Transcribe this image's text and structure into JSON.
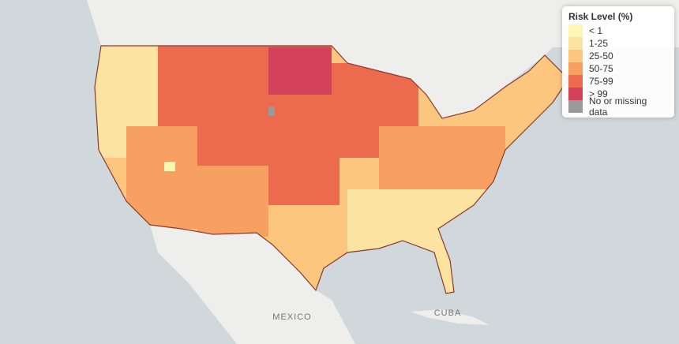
{
  "legend": {
    "title": "Risk Level (%)",
    "items": [
      {
        "label": "< 1",
        "color": "#fef6b5"
      },
      {
        "label": "1-25",
        "color": "#fde3a1"
      },
      {
        "label": "25-50",
        "color": "#fdc67f"
      },
      {
        "label": "50-75",
        "color": "#f8a062"
      },
      {
        "label": "75-99",
        "color": "#ec6a4e"
      },
      {
        "label": "> 99",
        "color": "#d3405a"
      },
      {
        "label": "No or missing data",
        "color": "#9a9a9a"
      }
    ]
  },
  "places": [
    "MEXICO",
    "CUBA"
  ]
}
